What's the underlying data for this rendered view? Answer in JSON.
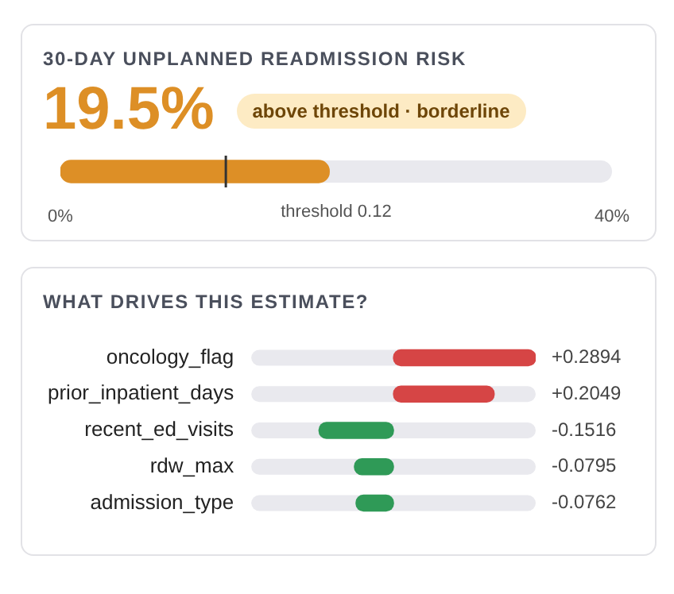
{
  "chart_data": [
    {
      "type": "bar",
      "orientation": "horizontal",
      "title": "30-DAY UNPLANNED READMISSION RISK",
      "categories": [
        null
      ],
      "values": [
        19.5
      ],
      "colors": [
        "#dd8f26"
      ],
      "value_labels": [
        "19.5%"
      ],
      "xlim": [
        0,
        40
      ],
      "xticks": [
        {
          "value": 0,
          "label": "0%"
        },
        {
          "value": 40,
          "label": "40%"
        }
      ],
      "ref_lines": [
        {
          "axis": "x",
          "value": 12,
          "label": "threshold 0.12",
          "color": "#333333"
        }
      ],
      "annotations": [
        "above threshold · borderline"
      ]
    },
    {
      "type": "bar",
      "orientation": "horizontal",
      "title": "WHAT DRIVES THIS ESTIMATE?",
      "categories": [
        "oncology_flag",
        "prior_inpatient_days",
        "recent_ed_visits",
        "rdw_max",
        "admission_type"
      ],
      "values": [
        0.2894,
        0.2049,
        -0.1516,
        -0.0795,
        -0.0762
      ],
      "colors": [
        "#d64545",
        "#d64545",
        "#2f9a57",
        "#2f9a57",
        "#2f9a57"
      ],
      "value_labels": [
        "+0.2894",
        "+0.2049",
        "-0.1516",
        "-0.0795",
        "-0.0762"
      ]
    }
  ]
}
